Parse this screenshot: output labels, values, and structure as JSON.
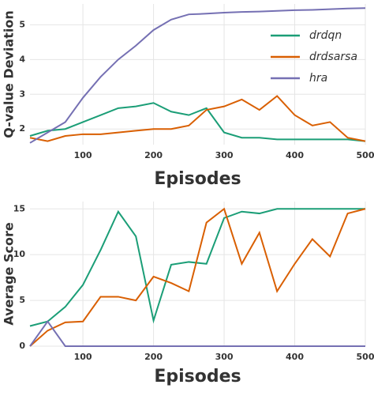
{
  "chart_data": [
    {
      "type": "line",
      "xlabel": "Episodes",
      "ylabel": "Q-value Deviation",
      "x": [
        25,
        50,
        75,
        100,
        125,
        150,
        175,
        200,
        225,
        250,
        275,
        300,
        325,
        350,
        375,
        400,
        425,
        450,
        475,
        500
      ],
      "xlim": [
        25,
        500
      ],
      "xticks": [
        100,
        200,
        300,
        400,
        500
      ],
      "ylim": [
        1.55,
        5.6
      ],
      "yticks": [
        2,
        3,
        4,
        5
      ],
      "grid": true,
      "legend": "upper right",
      "series": [
        {
          "name": "drdqn",
          "color": "#1b9e77",
          "values": [
            1.8,
            1.95,
            2.0,
            2.2,
            2.4,
            2.6,
            2.65,
            2.75,
            2.5,
            2.4,
            2.6,
            1.9,
            1.75,
            1.75,
            1.7,
            1.7,
            1.7,
            1.7,
            1.7,
            1.65
          ]
        },
        {
          "name": "drdsarsa",
          "color": "#d95f02",
          "values": [
            1.75,
            1.65,
            1.8,
            1.85,
            1.85,
            1.9,
            1.95,
            2.0,
            2.0,
            2.1,
            2.55,
            2.65,
            2.85,
            2.55,
            2.95,
            2.4,
            2.1,
            2.2,
            1.75,
            1.65
          ]
        },
        {
          "name": "hra",
          "color": "#7570b3",
          "values": [
            1.6,
            1.9,
            2.2,
            2.9,
            3.5,
            4.0,
            4.4,
            4.85,
            5.15,
            5.3,
            5.32,
            5.35,
            5.37,
            5.38,
            5.4,
            5.42,
            5.43,
            5.45,
            5.47,
            5.48
          ]
        }
      ]
    },
    {
      "type": "line",
      "xlabel": "Episodes",
      "ylabel": "Average Score",
      "x": [
        25,
        50,
        75,
        100,
        125,
        150,
        175,
        200,
        225,
        250,
        275,
        300,
        325,
        350,
        375,
        400,
        425,
        450,
        475,
        500
      ],
      "xlim": [
        25,
        500
      ],
      "xticks": [
        100,
        200,
        300,
        400,
        500
      ],
      "ylim": [
        0,
        15.8
      ],
      "yticks": [
        0,
        5,
        10,
        15
      ],
      "grid": true,
      "series": [
        {
          "name": "drdqn",
          "color": "#1b9e77",
          "values": [
            2.2,
            2.7,
            4.3,
            6.7,
            10.5,
            14.7,
            12.0,
            2.8,
            8.9,
            9.2,
            9.0,
            14.0,
            14.7,
            14.5,
            15,
            15,
            15,
            15,
            15,
            15
          ]
        },
        {
          "name": "drdsarsa",
          "color": "#d95f02",
          "values": [
            0,
            1.7,
            2.6,
            2.7,
            5.4,
            5.4,
            5.0,
            7.6,
            6.9,
            6.0,
            13.5,
            15.0,
            9.0,
            12.4,
            6.0,
            9.0,
            11.7,
            9.8,
            14.5,
            15
          ]
        },
        {
          "name": "hra",
          "color": "#7570b3",
          "values": [
            0,
            2.7,
            0,
            0,
            0,
            0,
            0,
            0,
            0,
            0,
            0,
            0,
            0,
            0,
            0,
            0,
            0,
            0,
            0,
            0
          ]
        }
      ]
    }
  ]
}
